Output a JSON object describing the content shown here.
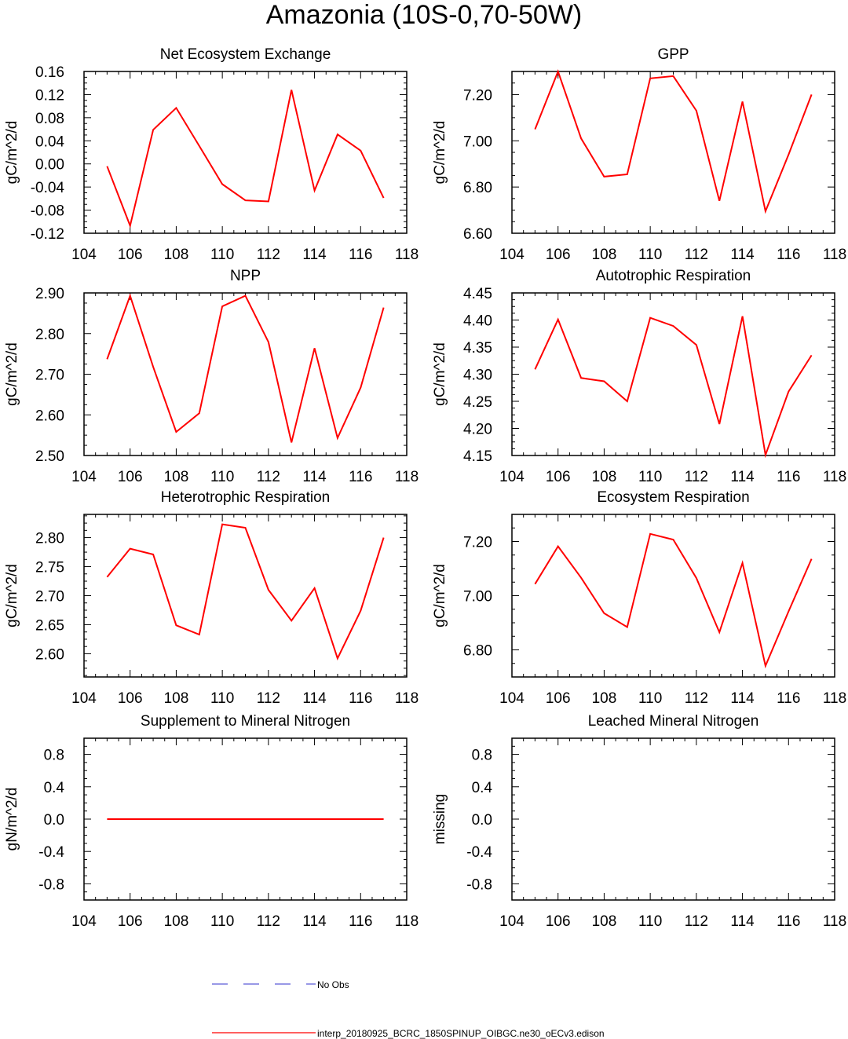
{
  "figure": {
    "title": "Amazonia (10S-0,70-50W)",
    "line_color": "#ff0000",
    "obs_color": "#5a5ad6"
  },
  "legend": {
    "items": [
      {
        "label": "No Obs",
        "style": "dashed",
        "color": "#5a5ad6"
      },
      {
        "label": "interp_20180925_BCRC_1850SPINUP_OIBGC.ne30_oECv3.edison",
        "style": "solid",
        "color": "#ff0000"
      }
    ]
  },
  "chart_data": [
    {
      "type": "line",
      "title": "Net Ecosystem Exchange",
      "ylabel": "gC/m^2/d",
      "xlim": [
        104,
        118
      ],
      "xticks": [
        "104",
        "106",
        "108",
        "110",
        "112",
        "114",
        "116",
        "118"
      ],
      "ylim": [
        -0.12,
        0.16
      ],
      "yticks": [
        "-0.12",
        "-0.08",
        "-0.04",
        "0.00",
        "0.04",
        "0.08",
        "0.12",
        "0.16"
      ],
      "series": [
        {
          "x": [
            105,
            106,
            107,
            108,
            109,
            110,
            111,
            112,
            113,
            114,
            115,
            116,
            117
          ],
          "values": [
            -0.004,
            -0.107,
            0.059,
            0.097,
            0.031,
            -0.035,
            -0.063,
            -0.065,
            0.128,
            -0.046,
            0.051,
            0.023,
            -0.059
          ]
        }
      ]
    },
    {
      "type": "line",
      "title": "GPP",
      "ylabel": "gC/m^2/d",
      "xlim": [
        104,
        118
      ],
      "xticks": [
        "104",
        "106",
        "108",
        "110",
        "112",
        "114",
        "116",
        "118"
      ],
      "ylim": [
        6.6,
        7.3
      ],
      "yticks": [
        "6.60",
        "6.80",
        "7.00",
        "7.20"
      ],
      "series": [
        {
          "x": [
            105,
            106,
            107,
            108,
            109,
            110,
            111,
            112,
            113,
            114,
            115,
            116,
            117
          ],
          "values": [
            7.05,
            7.3,
            7.01,
            6.845,
            6.855,
            7.27,
            7.28,
            7.13,
            6.74,
            7.17,
            6.695,
            6.94,
            7.2
          ]
        }
      ]
    },
    {
      "type": "line",
      "title": "NPP",
      "ylabel": "gC/m^2/d",
      "xlim": [
        104,
        118
      ],
      "xticks": [
        "104",
        "106",
        "108",
        "110",
        "112",
        "114",
        "116",
        "118"
      ],
      "ylim": [
        2.5,
        2.9
      ],
      "yticks": [
        "2.50",
        "2.60",
        "2.70",
        "2.80",
        "2.90"
      ],
      "series": [
        {
          "x": [
            105,
            106,
            107,
            108,
            109,
            110,
            111,
            112,
            113,
            114,
            115,
            116,
            117
          ],
          "values": [
            2.737,
            2.893,
            2.718,
            2.558,
            2.604,
            2.867,
            2.893,
            2.779,
            2.532,
            2.764,
            2.543,
            2.667,
            2.864
          ]
        }
      ]
    },
    {
      "type": "line",
      "title": "Autotrophic Respiration",
      "ylabel": "gC/m^2/d",
      "xlim": [
        104,
        118
      ],
      "xticks": [
        "104",
        "106",
        "108",
        "110",
        "112",
        "114",
        "116",
        "118"
      ],
      "ylim": [
        4.15,
        4.45
      ],
      "yticks": [
        "4.15",
        "4.20",
        "4.25",
        "4.30",
        "4.35",
        "4.40",
        "4.45"
      ],
      "series": [
        {
          "x": [
            105,
            106,
            107,
            108,
            109,
            110,
            111,
            112,
            113,
            114,
            115,
            116,
            117
          ],
          "values": [
            4.309,
            4.401,
            4.293,
            4.287,
            4.25,
            4.404,
            4.389,
            4.354,
            4.208,
            4.407,
            4.151,
            4.268,
            4.335
          ]
        }
      ]
    },
    {
      "type": "line",
      "title": "Heterotrophic Respiration",
      "ylabel": "gC/m^2/d",
      "xlim": [
        104,
        118
      ],
      "xticks": [
        "104",
        "106",
        "108",
        "110",
        "112",
        "114",
        "116",
        "118"
      ],
      "ylim": [
        2.56,
        2.84
      ],
      "yticks": [
        "2.60",
        "2.65",
        "2.70",
        "2.75",
        "2.80"
      ],
      "series": [
        {
          "x": [
            105,
            106,
            107,
            108,
            109,
            110,
            111,
            112,
            113,
            114,
            115,
            116,
            117
          ],
          "values": [
            2.732,
            2.781,
            2.771,
            2.649,
            2.633,
            2.823,
            2.817,
            2.71,
            2.657,
            2.713,
            2.592,
            2.674,
            2.8
          ]
        }
      ]
    },
    {
      "type": "line",
      "title": "Ecosystem Respiration",
      "ylabel": "gC/m^2/d",
      "xlim": [
        104,
        118
      ],
      "xticks": [
        "104",
        "106",
        "108",
        "110",
        "112",
        "114",
        "116",
        "118"
      ],
      "ylim": [
        6.7,
        7.3
      ],
      "yticks": [
        "6.80",
        "7.00",
        "7.20"
      ],
      "series": [
        {
          "x": [
            105,
            106,
            107,
            108,
            109,
            110,
            111,
            112,
            113,
            114,
            115,
            116,
            117
          ],
          "values": [
            7.043,
            7.182,
            7.066,
            6.935,
            6.884,
            7.228,
            7.207,
            7.065,
            6.865,
            7.121,
            6.741,
            6.942,
            7.136
          ]
        }
      ]
    },
    {
      "type": "line",
      "title": "Supplement to Mineral Nitrogen",
      "ylabel": "gN/m^2/d",
      "xlim": [
        104,
        118
      ],
      "xticks": [
        "104",
        "106",
        "108",
        "110",
        "112",
        "114",
        "116",
        "118"
      ],
      "ylim": [
        -1.0,
        1.0
      ],
      "yticks": [
        "-0.8",
        "-0.4",
        "0.0",
        "0.4",
        "0.8"
      ],
      "series": [
        {
          "x": [
            105,
            106,
            107,
            108,
            109,
            110,
            111,
            112,
            113,
            114,
            115,
            116,
            117
          ],
          "values": [
            0,
            0,
            0,
            0,
            0,
            0,
            0,
            0,
            0,
            0,
            0,
            0,
            0
          ]
        }
      ]
    },
    {
      "type": "line",
      "title": "Leached Mineral Nitrogen",
      "ylabel": "missing",
      "xlim": [
        104,
        118
      ],
      "xticks": [
        "104",
        "106",
        "108",
        "110",
        "112",
        "114",
        "116",
        "118"
      ],
      "ylim": [
        -1.0,
        1.0
      ],
      "yticks": [
        "-0.8",
        "-0.4",
        "0.0",
        "0.4",
        "0.8"
      ],
      "series": []
    }
  ]
}
